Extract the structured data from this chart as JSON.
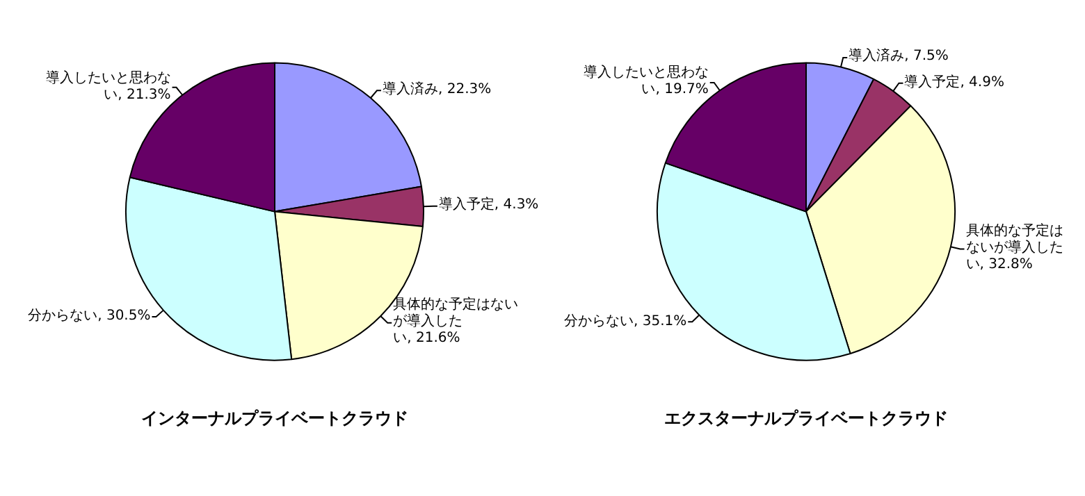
{
  "chart_data": [
    {
      "type": "pie",
      "title": "インターナルプライベートクラウド",
      "categories": [
        "導入済み",
        "導入予定",
        "具体的な予定はないが導入したい",
        "分からない",
        "導入したいと思わない"
      ],
      "values": [
        22.3,
        4.3,
        21.6,
        30.5,
        21.3
      ],
      "value_labels": [
        "22.3%",
        "4.3%",
        "21.6%",
        "30.5%",
        "21.3%"
      ],
      "colors": [
        "#9999ff",
        "#993366",
        "#ffffcc",
        "#ccffff",
        "#660066"
      ],
      "legend": false
    },
    {
      "type": "pie",
      "title": "エクスターナルプライベートクラウド",
      "categories": [
        "導入済み",
        "導入予定",
        "具体的な予定はないが導入したい",
        "分からない",
        "導入したいと思わない"
      ],
      "values": [
        7.5,
        4.9,
        32.8,
        35.1,
        19.7
      ],
      "value_labels": [
        "7.5%",
        "4.9%",
        "32.8%",
        "35.1%",
        "19.7%"
      ],
      "colors": [
        "#9999ff",
        "#993366",
        "#ffffcc",
        "#ccffff",
        "#660066"
      ],
      "legend": false
    }
  ]
}
